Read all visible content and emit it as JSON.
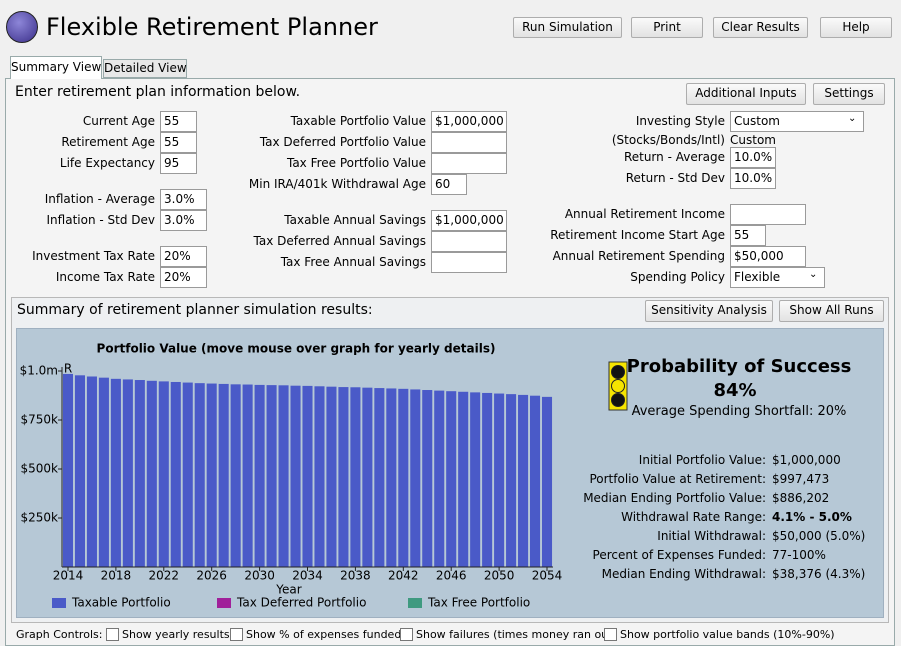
{
  "app": {
    "title": "Flexible Retirement Planner",
    "buttons": [
      "Run Simulation",
      "Print",
      "Clear Results",
      "Help"
    ]
  },
  "tabs": [
    "Summary View",
    "Detailed View"
  ],
  "inputs": {
    "heading": "Enter retirement plan information below.",
    "buttons": [
      "Additional Inputs",
      "Settings"
    ],
    "fields": [
      {
        "label": "Current Age",
        "value": "55"
      },
      {
        "label": "Retirement Age",
        "value": "55"
      },
      {
        "label": "Life Expectancy",
        "value": "95"
      },
      {
        "label": "Inflation - Average",
        "value": "3.0%"
      },
      {
        "label": "Inflation - Std Dev",
        "value": "3.0%"
      },
      {
        "label": "Investment Tax Rate",
        "value": "20%"
      },
      {
        "label": "Income Tax Rate",
        "value": "20%"
      },
      {
        "label": "Taxable Portfolio Value",
        "value": "$1,000,000"
      },
      {
        "label": "Tax Deferred Portfolio Value"
      },
      {
        "label": "Tax Free Portfolio Value"
      },
      {
        "label": "Min IRA/401k Withdrawal Age",
        "value": "60"
      },
      {
        "label": "Taxable Annual Savings",
        "value": "$1,000,000"
      },
      {
        "label": "Tax Deferred Annual Savings"
      },
      {
        "label": "Tax Free Annual Savings"
      },
      {
        "label": "Investing Style",
        "value": "Custom"
      },
      {
        "label": "(Stocks/Bonds/Intl)",
        "value": "Custom"
      },
      {
        "label": "Return - Average",
        "value": "10.0%"
      },
      {
        "label": "Return - Std Dev",
        "value": "10.0%"
      },
      {
        "label": "Annual Retirement Income"
      },
      {
        "label": "Retirement Income Start Age",
        "value": "55"
      },
      {
        "label": "Annual Retirement Spending",
        "value": "$50,000"
      },
      {
        "label": "Spending Policy",
        "value": "Flexible"
      }
    ]
  },
  "results": {
    "heading": "Summary of retirement planner simulation results:",
    "buttons": [
      "Sensitivity Analysis",
      "Show All Runs"
    ],
    "probability_title": "Probability of Success",
    "probability": "84%",
    "shortfall": "Average Spending Shortfall: 20%",
    "stats": [
      {
        "label": "Initial Portfolio Value:",
        "value": "$1,000,000"
      },
      {
        "label": "Portfolio Value at Retirement:",
        "value": "$997,473"
      },
      {
        "label": "Median Ending Portfolio Value:",
        "value": "$886,202"
      },
      {
        "label": "Withdrawal Rate Range:",
        "value": "4.1% - 5.0%"
      },
      {
        "label": "Initial Withdrawal:",
        "value": "$50,000 (5.0%)"
      },
      {
        "label": "Percent of Expenses Funded:",
        "value": "77-100%"
      },
      {
        "label": "Median Ending Withdrawal:",
        "value": "$38,376 (4.3%)"
      }
    ]
  },
  "chart": {
    "type": "bar",
    "title": "Portfolio Value  (move mouse over graph for yearly details)",
    "x_label": "Year",
    "marker": "R",
    "x": [
      2014,
      2015,
      2016,
      2017,
      2018,
      2019,
      2020,
      2021,
      2022,
      2023,
      2024,
      2025,
      2026,
      2027,
      2028,
      2029,
      2030,
      2031,
      2032,
      2033,
      2034,
      2035,
      2036,
      2037,
      2038,
      2039,
      2040,
      2041,
      2042,
      2043,
      2044,
      2045,
      2046,
      2047,
      2048,
      2049,
      2050,
      2051,
      2052,
      2053,
      2054
    ],
    "values": [
      985000,
      978000,
      972000,
      966000,
      960000,
      957000,
      954000,
      950000,
      947000,
      944000,
      941000,
      938000,
      936000,
      934000,
      932000,
      931000,
      929000,
      928000,
      927000,
      925000,
      924000,
      922000,
      920000,
      918000,
      917000,
      915000,
      913000,
      911000,
      909000,
      906000,
      903000,
      900000,
      897000,
      894000,
      891000,
      888000,
      885000,
      882000,
      878000,
      874000,
      868000
    ],
    "color": "#4a5ac8",
    "xlim": [
      2013.5,
      2054.5
    ],
    "xticks": [
      2014,
      2018,
      2022,
      2026,
      2030,
      2034,
      2038,
      2042,
      2046,
      2050,
      2054
    ],
    "ylim": [
      0,
      1000000
    ],
    "yticks": [
      {
        "value": 250000,
        "label": "$250k"
      },
      {
        "value": 500000,
        "label": "$500k"
      },
      {
        "value": 750000,
        "label": "$750k"
      },
      {
        "value": 1000000,
        "label": "$1.0m"
      }
    ],
    "legend": [
      {
        "name": "Taxable Portfolio",
        "color": "#4a5ac8"
      },
      {
        "name": "Tax Deferred Portfolio",
        "color": "#a0209a"
      },
      {
        "name": "Tax Free Portfolio",
        "color": "#3f9a80"
      }
    ]
  },
  "graph_controls": {
    "label": "Graph Controls:",
    "options": [
      "Show yearly results",
      "Show % of expenses funded",
      "Show failures (times money ran out)",
      "Show portfolio value bands (10%-90%)"
    ]
  }
}
